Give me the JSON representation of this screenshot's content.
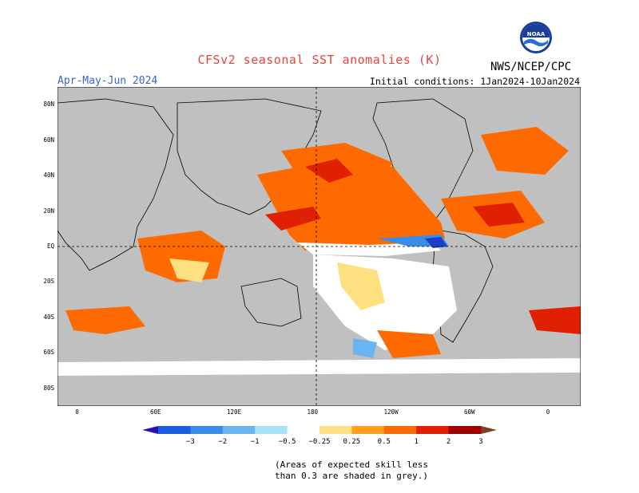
{
  "header": {
    "title": "CFSv2 seasonal SST anomalies (K)",
    "period": "Apr-May-Jun 2024",
    "initial_conditions": "Initial conditions: 1Jan2024-10Jan2024",
    "organization": "NWS/NCEP/CPC",
    "logo_text": "NOAA"
  },
  "map": {
    "lat_labels": [
      "80N",
      "60N",
      "40N",
      "20N",
      "EQ",
      "20S",
      "40S",
      "60S",
      "80S"
    ],
    "lon_labels": [
      "0",
      "60E",
      "120E",
      "180",
      "120W",
      "60W",
      "0"
    ],
    "colors": {
      "skill_grey": "#c0c0c0",
      "neutral": "#ffffff",
      "light_blue": "#a8e0f0",
      "mid_blue": "#3a8ce8",
      "dark_blue": "#1a40c8",
      "light_orange": "#ffe080",
      "orange": "#ff6a00",
      "red": "#e82000",
      "dark_red": "#a00000"
    }
  },
  "colorbar": {
    "labels": [
      "−3",
      "−2",
      "−1",
      "−0.5",
      "−0.25",
      "0.25",
      "0.5",
      "1",
      "2",
      "3"
    ],
    "colors": [
      "#2a10b0",
      "#1a5ce0",
      "#3a8ce8",
      "#6ab4f0",
      "#a8e0f8",
      "#ffffff",
      "#ffe080",
      "#ffa020",
      "#ff6a00",
      "#e02000",
      "#a00000",
      "#7a4020"
    ]
  },
  "skill_note": "(Areas of expected skill less than 0.3 are shaded in grey.)"
}
